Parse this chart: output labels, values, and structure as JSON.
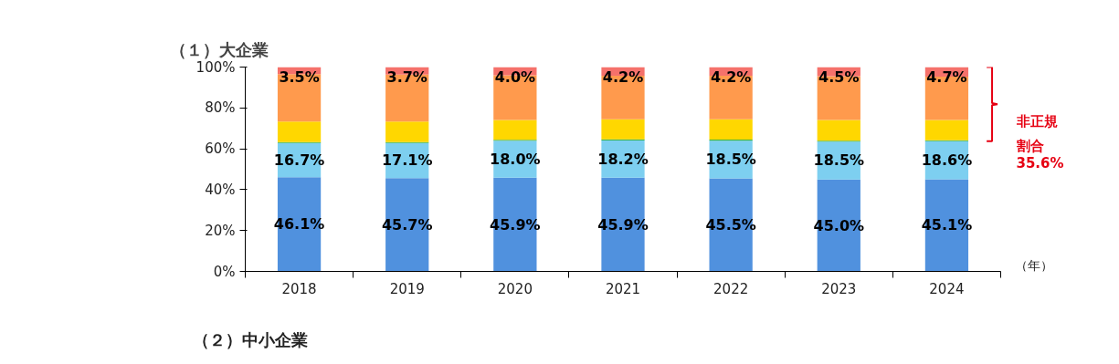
{
  "chart_data": {
    "type": "bar",
    "stacked": true,
    "title": "（１）大企業",
    "xlabel": "（年）",
    "categories": [
      "2018",
      "2019",
      "2020",
      "2021",
      "2022",
      "2023",
      "2024"
    ],
    "series": [
      {
        "color": "#5091de",
        "values": [
          46.1,
          45.7,
          45.9,
          45.9,
          45.5,
          45.0,
          45.1
        ],
        "value_labels": [
          "46.1%",
          "45.7%",
          "45.9%",
          "45.9%",
          "45.5%",
          "45.0%",
          "45.1%"
        ]
      },
      {
        "color": "#7dcff0",
        "values": [
          16.7,
          17.1,
          18.0,
          18.2,
          18.5,
          18.5,
          18.6
        ],
        "value_labels": [
          "16.7%",
          "17.1%",
          "18.0%",
          "18.2%",
          "18.5%",
          "18.5%",
          "18.6%"
        ]
      },
      {
        "color": "#3cb44b",
        "values": [
          0.5,
          0.5,
          0.5,
          0.5,
          0.5,
          0.5,
          0.5
        ]
      },
      {
        "color": "#ffd700",
        "values": [
          10.0,
          10.0,
          9.7,
          9.8,
          9.9,
          10.1,
          9.9
        ]
      },
      {
        "color": "#ff9a4d",
        "values": [
          23.2,
          23.0,
          21.9,
          21.4,
          21.4,
          21.4,
          21.2
        ]
      },
      {
        "color": "#f5716b",
        "values": [
          3.5,
          3.7,
          4.0,
          4.2,
          4.2,
          4.5,
          4.7
        ],
        "value_labels": [
          "3.5%",
          "3.7%",
          "4.0%",
          "4.2%",
          "4.2%",
          "4.5%",
          "4.7%"
        ]
      }
    ],
    "ylim": [
      0,
      100
    ],
    "yticks": [
      {
        "value": 0,
        "label": "0%"
      },
      {
        "value": 20,
        "label": "20%"
      },
      {
        "value": 40,
        "label": "40%"
      },
      {
        "value": 60,
        "label": "60%"
      },
      {
        "value": 80,
        "label": "80%"
      },
      {
        "value": 100,
        "label": "100%"
      }
    ],
    "grid": false,
    "annotations": [
      "非正規割合",
      "35.6%",
      "（２）中小企業"
    ]
  }
}
